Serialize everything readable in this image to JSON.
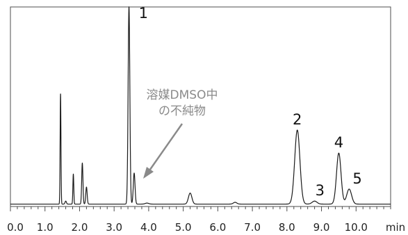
{
  "chart_data": {
    "type": "line",
    "title": "",
    "xlabel": "",
    "ylabel": "",
    "x_unit": "min",
    "xlim": [
      0,
      11.0
    ],
    "ylim": [
      0,
      100
    ],
    "x_ticks": [
      {
        "value": 0,
        "label": "0.0"
      },
      {
        "value": 1,
        "label": "1.0"
      },
      {
        "value": 2,
        "label": "2.0"
      },
      {
        "value": 3,
        "label": "3.0"
      },
      {
        "value": 4,
        "label": "4.0"
      },
      {
        "value": 5,
        "label": "5.0"
      },
      {
        "value": 6,
        "label": "6.0"
      },
      {
        "value": 7,
        "label": "7.0"
      },
      {
        "value": 8,
        "label": "8.0"
      },
      {
        "value": 9,
        "label": "9.0"
      },
      {
        "value": 10,
        "label": "10.0"
      }
    ],
    "grid": false,
    "baseline": 1.2,
    "peaks": [
      {
        "x": 1.45,
        "height": 55,
        "width": 0.012,
        "label": ""
      },
      {
        "x": 1.6,
        "height": 1.5,
        "width": 0.02,
        "label": ""
      },
      {
        "x": 1.82,
        "height": 15,
        "width": 0.013,
        "label": ""
      },
      {
        "x": 2.08,
        "height": 20.5,
        "width": 0.018,
        "label": ""
      },
      {
        "x": 2.2,
        "height": 8.5,
        "width": 0.02,
        "label": ""
      },
      {
        "x": 3.43,
        "height": 98.5,
        "width": 0.025,
        "label": "1"
      },
      {
        "x": 3.58,
        "height": 15.5,
        "width": 0.025,
        "label": ""
      },
      {
        "x": 3.95,
        "height": 0.5,
        "width": 0.05,
        "label": ""
      },
      {
        "x": 5.2,
        "height": 5.5,
        "width": 0.05,
        "label": ""
      },
      {
        "x": 6.5,
        "height": 0.9,
        "width": 0.05,
        "label": ""
      },
      {
        "x": 8.3,
        "height": 37,
        "width": 0.075,
        "label": "2"
      },
      {
        "x": 8.8,
        "height": 1.5,
        "width": 0.07,
        "label": "3"
      },
      {
        "x": 9.5,
        "height": 25.5,
        "width": 0.065,
        "label": "4"
      },
      {
        "x": 9.8,
        "height": 7.5,
        "width": 0.07,
        "label": "5"
      }
    ],
    "annotations": [
      {
        "line1": "溶媒DMSO中",
        "line2": "の不純物",
        "points_to_x": 3.63
      }
    ],
    "colors": {
      "line": "#1a1a1a",
      "axis": "#4d4d4d",
      "annotation": "#8a8a8a"
    }
  }
}
